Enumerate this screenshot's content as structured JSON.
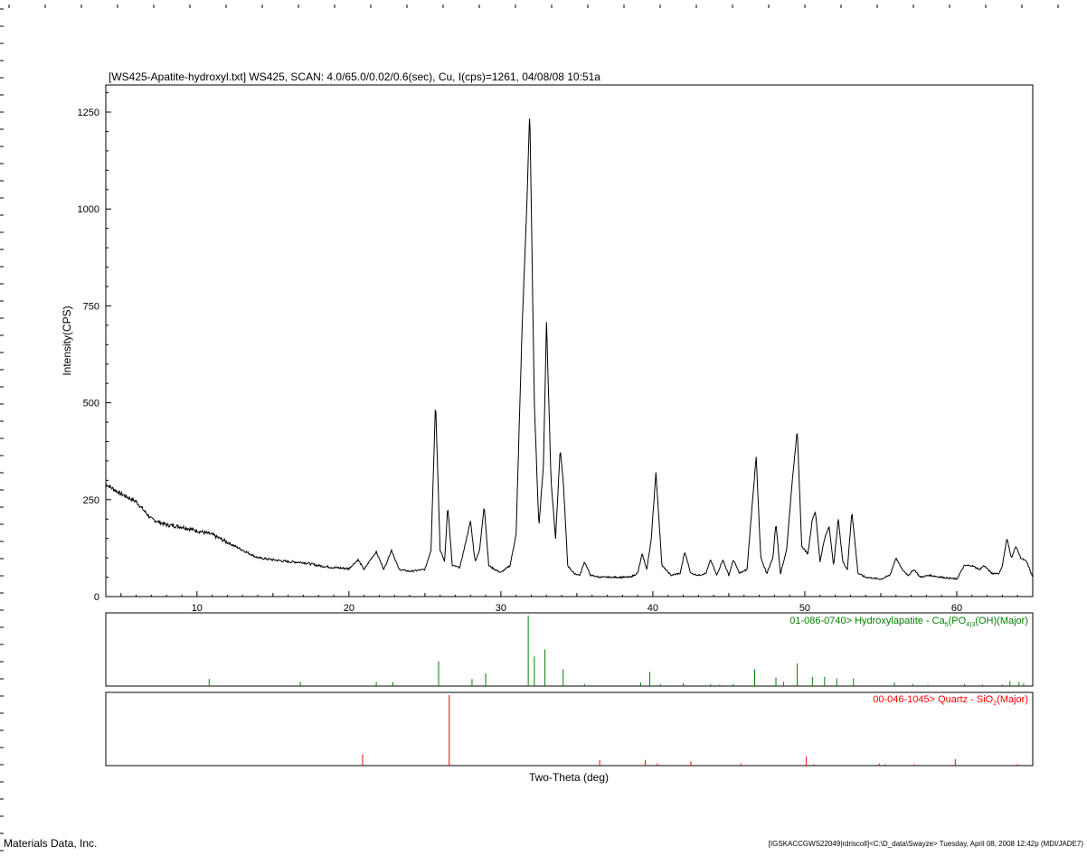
{
  "chart_data": {
    "type": "line",
    "title": "[WS425-Apatite-hydroxyl.txt] WS425, SCAN: 4.0/65.0/0.02/0.6(sec), Cu, I(cps)=1261, 04/08/08 10:51a",
    "xlabel": "Two-Theta (deg)",
    "ylabel": "Intensity(CPS)",
    "xlim": [
      4.0,
      65.0
    ],
    "ylim": [
      0,
      1250
    ],
    "xticks": [
      10,
      20,
      30,
      40,
      50,
      60
    ],
    "yticks": [
      0,
      250,
      500,
      750,
      1000,
      1250
    ],
    "grid": false,
    "series": [
      {
        "color": "#000000",
        "x": [
          4.0,
          5.0,
          6.0,
          7.0,
          8.0,
          9.0,
          10.0,
          11.0,
          12.0,
          13.0,
          14.0,
          15.0,
          16.0,
          17.0,
          18.0,
          19.0,
          20.0,
          20.6,
          21.0,
          21.5,
          21.8,
          22.3,
          22.8,
          23.3,
          24.0,
          25.0,
          25.4,
          25.7,
          26.0,
          26.3,
          26.5,
          26.8,
          27.3,
          27.8,
          28.0,
          28.3,
          28.6,
          28.9,
          29.2,
          29.6,
          30.0,
          30.6,
          31.0,
          31.4,
          31.7,
          31.9,
          32.2,
          32.5,
          32.8,
          33.0,
          33.3,
          33.6,
          33.9,
          34.1,
          34.4,
          34.8,
          35.2,
          35.5,
          35.9,
          36.5,
          37.5,
          38.5,
          39.0,
          39.3,
          39.6,
          39.9,
          40.2,
          40.6,
          41.2,
          41.8,
          42.1,
          42.5,
          43.0,
          43.5,
          43.8,
          44.2,
          44.6,
          45.0,
          45.3,
          45.7,
          46.2,
          46.5,
          46.8,
          47.1,
          47.5,
          47.9,
          48.1,
          48.4,
          48.8,
          49.2,
          49.5,
          49.8,
          50.2,
          50.5,
          50.7,
          51.0,
          51.3,
          51.6,
          51.9,
          52.2,
          52.5,
          52.8,
          53.1,
          53.5,
          54.0,
          55.0,
          55.6,
          56.0,
          56.4,
          56.8,
          57.2,
          57.6,
          58.2,
          59.0,
          60.0,
          60.5,
          61.0,
          61.5,
          61.8,
          62.3,
          62.8,
          63.0,
          63.3,
          63.6,
          63.9,
          64.2,
          64.6,
          65.0
        ],
        "y": [
          290,
          265,
          245,
          200,
          185,
          180,
          170,
          160,
          140,
          120,
          100,
          95,
          90,
          88,
          80,
          75,
          72,
          95,
          70,
          100,
          115,
          70,
          120,
          70,
          65,
          70,
          120,
          505,
          120,
          90,
          235,
          80,
          75,
          160,
          195,
          90,
          120,
          235,
          80,
          70,
          62,
          80,
          160,
          700,
          1000,
          1260,
          500,
          180,
          340,
          710,
          300,
          150,
          380,
          300,
          80,
          60,
          55,
          90,
          55,
          50,
          50,
          50,
          60,
          110,
          70,
          150,
          320,
          80,
          55,
          60,
          115,
          60,
          55,
          60,
          95,
          55,
          95,
          55,
          95,
          60,
          70,
          220,
          360,
          100,
          60,
          100,
          190,
          60,
          120,
          310,
          430,
          130,
          110,
          200,
          220,
          90,
          150,
          180,
          80,
          200,
          90,
          70,
          220,
          60,
          50,
          45,
          55,
          100,
          70,
          55,
          70,
          50,
          55,
          50,
          45,
          80,
          80,
          70,
          80,
          60,
          60,
          80,
          150,
          100,
          130,
          100,
          90,
          50
        ]
      }
    ],
    "reference_patterns": [
      {
        "name": "01-086-0740> Hydroxylapatite - Ca5(PO4)3(OH)(Major)",
        "label_text": "01-086-0740> Hydroxylapatite - Ca",
        "label_sub1": "5",
        "label_mid": "(PO",
        "label_sub2": "4",
        "label_sub3": ")3",
        "label_tail": "(OH)(Major)",
        "color": "#008000",
        "positions": [
          10.8,
          16.8,
          21.8,
          22.9,
          25.9,
          28.1,
          29.0,
          31.8,
          32.2,
          32.9,
          34.1,
          35.5,
          39.2,
          39.8,
          40.5,
          42.0,
          43.8,
          44.4,
          45.3,
          46.7,
          48.1,
          48.6,
          49.5,
          50.5,
          51.3,
          52.1,
          53.2,
          55.9,
          57.1,
          58.1,
          60.5,
          61.7,
          63.0,
          63.5,
          64.1,
          64.4
        ],
        "intensities": [
          10,
          6,
          6,
          6,
          35,
          10,
          18,
          100,
          42,
          52,
          24,
          3,
          5,
          20,
          3,
          4,
          3,
          2,
          3,
          24,
          12,
          6,
          32,
          13,
          13,
          11,
          11,
          5,
          3,
          2,
          3,
          2,
          2,
          7,
          6,
          4
        ]
      },
      {
        "name": "00-046-1045> Quartz - SiO2(Major)",
        "label_text": "00-046-1045> Quartz - SiO",
        "label_sub1": "2",
        "label_tail": "(Major)",
        "color": "#ff0000",
        "positions": [
          20.9,
          26.6,
          36.5,
          39.5,
          40.3,
          42.5,
          45.8,
          50.1,
          50.6,
          54.9,
          55.3,
          57.2,
          59.9,
          64.0
        ],
        "intensities": [
          16,
          100,
          8,
          8,
          3,
          6,
          3,
          13,
          2,
          3,
          2,
          2,
          9,
          2
        ]
      }
    ]
  },
  "footer": {
    "left": "Materials Data, Inc.",
    "right": "[IGSKACCGWS22049|rdriscoll]<C:\\D_data\\Swayze> Tuesday, April 08, 2008 12:42p (MDI/JADE7)"
  }
}
